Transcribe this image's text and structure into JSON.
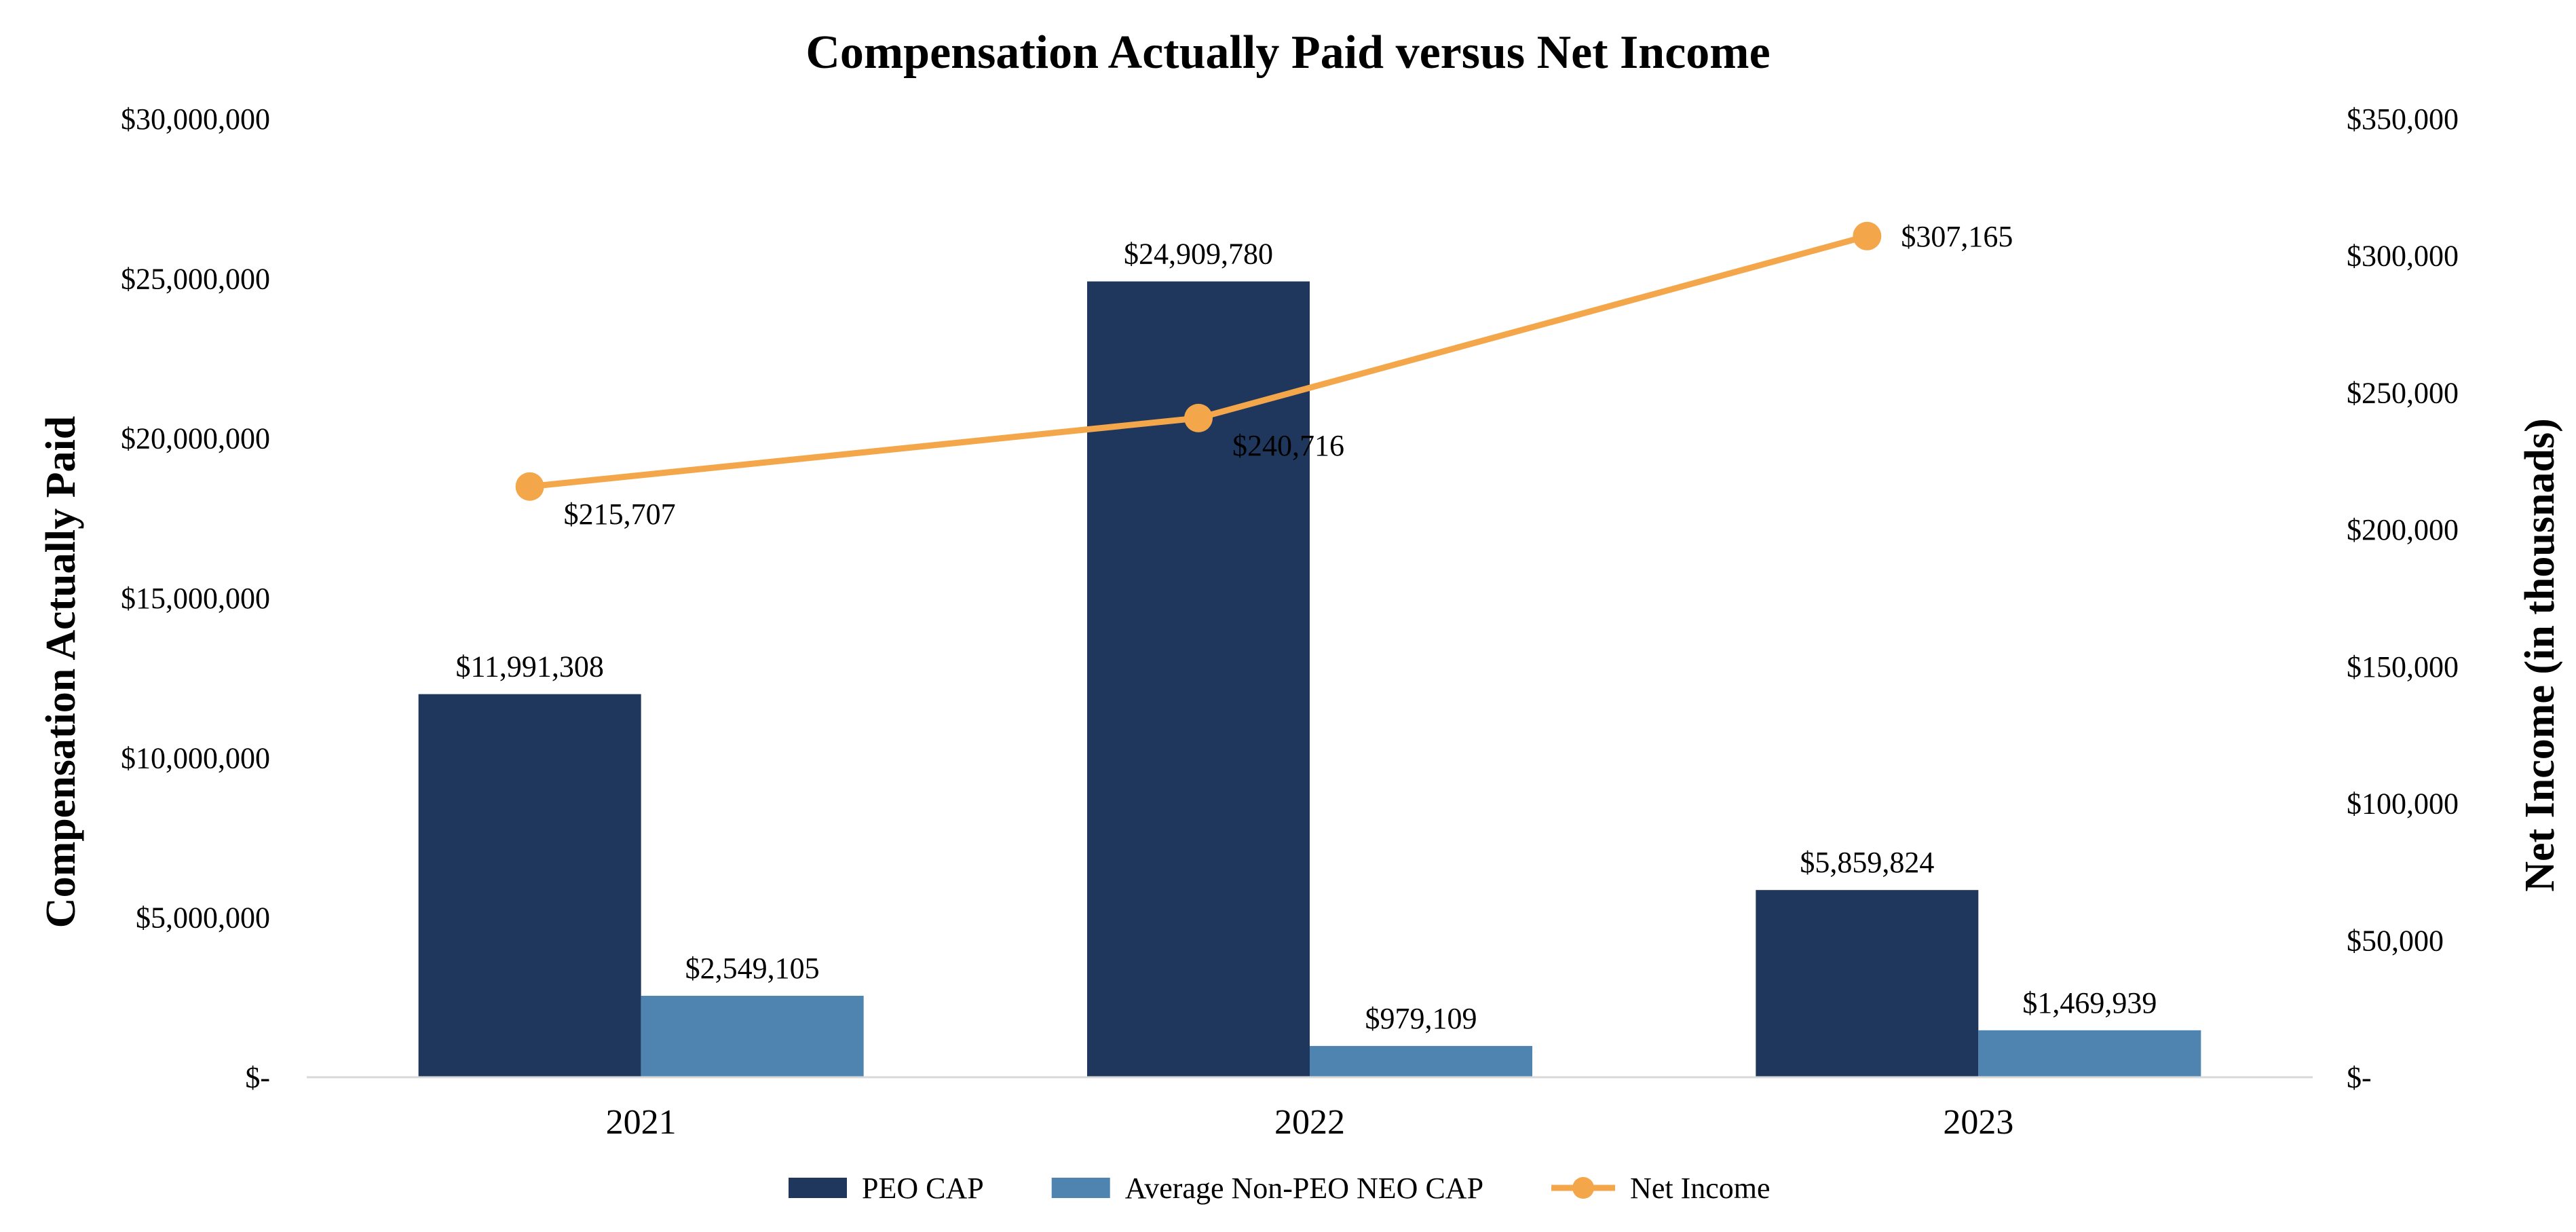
{
  "chart_data": {
    "type": "bar",
    "title": "Compensation Actually Paid versus Net Income",
    "categories": [
      "2021",
      "2022",
      "2023"
    ],
    "ylabel": "Compensation Actually Paid",
    "y2label": "Net Income (in thousnads)",
    "ylim": [
      0,
      30000000
    ],
    "y2lim": [
      0,
      350000
    ],
    "yticks": [
      "$-",
      "$5,000,000",
      "$10,000,000",
      "$15,000,000",
      "$20,000,000",
      "$25,000,000",
      "$30,000,000"
    ],
    "y2ticks": [
      "$-",
      "$50,000",
      "$100,000",
      "$150,000",
      "$200,000",
      "$250,000",
      "$300,000",
      "$350,000"
    ],
    "legend_position": "bottom",
    "series": [
      {
        "name": "PEO CAP",
        "kind": "bar",
        "axis": "left",
        "color": "#1f375c",
        "values": [
          11991308,
          24909780,
          5859824
        ],
        "labels": [
          "$11,991,308",
          "$24,909,780",
          "$5,859,824"
        ]
      },
      {
        "name": "Average Non-PEO NEO CAP",
        "kind": "bar",
        "axis": "left",
        "color": "#4f84b1",
        "values": [
          2549105,
          979109,
          1469939
        ],
        "labels": [
          "$2,549,105",
          "$979,109",
          "$1,469,939"
        ]
      },
      {
        "name": "Net Income",
        "kind": "line",
        "axis": "right",
        "color": "#f4a64a",
        "values": [
          215707,
          240716,
          307165
        ],
        "labels": [
          "$215,707",
          "$240,716",
          "$307,165"
        ]
      }
    ]
  }
}
